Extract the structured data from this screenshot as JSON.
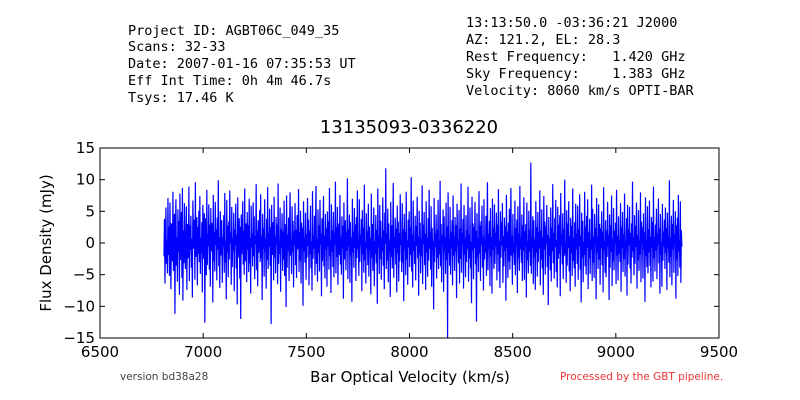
{
  "header": {
    "left": [
      "Project ID: AGBT06C_049_35",
      "Scans: 32-33",
      "Date: 2007-01-16 07:35:53 UT",
      "Eff Int Time: 0h 4m 46.7s",
      "Tsys: 17.46 K"
    ],
    "right": [
      "13:13:50.0 -03:36:21 J2000",
      "AZ: 121.2, EL: 28.3",
      "Rest Frequency:   1.420 GHz",
      "Sky Frequency:    1.383 GHz",
      "Velocity: 8060 km/s OPTI-BAR"
    ]
  },
  "footer": {
    "version": "version bd38a28",
    "processed": "Processed by the GBT pipeline."
  },
  "colors": {
    "series": "#0000ff",
    "processed_text": "#ee3333",
    "version_text": "#444444"
  },
  "chart_data": {
    "type": "line",
    "title": "13135093-0336220",
    "xlabel": "Bar Optical Velocity (km/s)",
    "ylabel": "Flux Density (mJy)",
    "xlim": [
      6500,
      9500
    ],
    "ylim": [
      -15,
      15
    ],
    "xticks": [
      6500,
      7000,
      7500,
      8000,
      8500,
      9000,
      9500
    ],
    "yticks": [
      -15,
      -10,
      -5,
      0,
      5,
      10,
      15
    ],
    "ytick_labels": [
      "−15",
      "−10",
      "−5",
      "0",
      "5",
      "10",
      "15"
    ],
    "grid": false,
    "series": [
      {
        "x_start": 6810,
        "x_end": 9320,
        "y": [
          -2.1,
          3.8,
          -6.4,
          1.2,
          5.6,
          -3.3,
          0.4,
          -4.8,
          7.1,
          -1.9,
          2.6,
          -5.2,
          6.4,
          -0.7,
          -7.3,
          3.1,
          1.8,
          -2.9,
          8.1,
          -4.4,
          -0.2,
          4.6,
          -11.2,
          2.3,
          6.9,
          -3.6,
          0.9,
          -6.1,
          5.3,
          -1.4,
          3.5,
          -8.2,
          7.8,
          -2.7,
          0.6,
          4.9,
          -5.5,
          8.7,
          -9.1,
          2.0,
          -3.2,
          6.3,
          -0.8,
          -4.1,
          1.5,
          5.8,
          -7.4,
          3.0,
          0.3,
          -2.4,
          8.9,
          -6.0,
          2.8,
          -1.1,
          4.3,
          -3.9,
          0.7,
          -8.6,
          6.7,
          1.9,
          -0.9,
          3.7,
          -5.8,
          9.6,
          -2.2,
          0.1,
          4.1,
          -6.7,
          2.5,
          -1.7,
          5.1,
          -3.0,
          7.4,
          -4.9,
          0.8,
          -1.6,
          3.3,
          -7.8,
          6.0,
          1.1,
          -2.5,
          4.7,
          -12.6,
          3.9,
          0.2,
          -5.1,
          8.4,
          -3.5,
          1.4,
          -0.5,
          6.1,
          -4.2,
          2.9,
          -6.9,
          5.5,
          -1.3,
          0.5,
          3.2,
          -9.4,
          7.6,
          -2.8,
          1.7,
          -4.5,
          6.5,
          -0.3,
          2.2,
          -5.9,
          4.0,
          -1.0,
          9.9,
          -3.7,
          0.9,
          -7.1,
          5.0,
          2.4,
          -2.0,
          3.6,
          -6.3,
          1.0,
          -0.6,
          4.4,
          -4.7,
          7.9,
          -3.1,
          0.4,
          -8.9,
          6.8,
          -1.5,
          2.7,
          -5.4,
          3.4,
          -2.6,
          8.3,
          -0.1,
          1.6,
          -6.6,
          5.7,
          -3.8,
          0.7,
          -1.2,
          4.8,
          -7.6,
          2.1,
          -0.4,
          6.2,
          -4.0,
          1.3,
          -9.7,
          7.2,
          -2.3,
          0.6,
          3.9,
          -5.6,
          2.6,
          -12.0,
          4.5,
          -1.8,
          0.3,
          6.6,
          -3.4,
          1.9,
          -5.0,
          8.6,
          -2.9,
          0.0,
          3.1,
          -6.2,
          4.9,
          -1.1,
          2.8,
          -4.6,
          7.0,
          -3.2,
          0.8,
          -8.0,
          5.9,
          -0.7,
          1.5,
          -3.7,
          6.4,
          -2.1,
          4.2,
          -5.7,
          1.1,
          -0.2,
          9.3,
          -4.3,
          2.0,
          -6.8,
          3.6,
          -1.6,
          0.5,
          5.2,
          -3.0,
          7.7,
          -2.4,
          1.2,
          -9.0,
          4.6,
          -0.9,
          2.3,
          -5.3,
          6.9,
          -1.4,
          0.7,
          -7.2,
          3.8,
          -2.7,
          8.8,
          -4.1,
          1.6,
          -0.6,
          5.4,
          -3.6,
          2.5,
          -12.8,
          6.0,
          -1.9,
          0.9,
          3.3,
          -5.9,
          7.3,
          -2.2,
          1.0,
          -4.8,
          4.1,
          -0.3,
          2.9,
          -6.5,
          9.4,
          -3.3,
          0.4,
          -1.7,
          5.6,
          -7.7,
          2.2,
          -0.8,
          4.7,
          -4.4,
          1.8,
          -2.6,
          6.7,
          -5.2,
          3.0,
          -0.1,
          -10.1,
          7.5,
          -3.9,
          1.3,
          -1.2,
          4.0,
          -6.0,
          2.7,
          8.0,
          -2.0,
          0.6,
          -4.9,
          5.8,
          -1.5,
          3.5,
          -7.0,
          1.9,
          -0.4,
          6.3,
          -3.5,
          2.1,
          -5.5,
          4.4,
          -1.0,
          0.2,
          8.5,
          -4.6,
          1.7,
          -2.8,
          5.1,
          -6.4,
          3.2,
          -0.7,
          2.4,
          -9.9,
          6.6,
          -1.3,
          0.8,
          -3.1,
          4.8,
          -5.8,
          1.4,
          -2.3,
          7.1,
          -0.5,
          3.7,
          -6.7,
          2.0,
          -1.8,
          5.9,
          -4.0,
          0.3,
          -7.5,
          8.2,
          -2.5,
          1.1,
          -0.9,
          4.3,
          -5.1,
          2.6,
          9.0,
          -3.3,
          0.7,
          -6.1,
          5.3,
          -1.6,
          2.8,
          -4.5,
          6.8,
          -0.2,
          1.5,
          -8.4,
          3.9,
          -2.9,
          0.9,
          7.4,
          -3.7,
          1.2,
          -5.6,
          4.6,
          -1.1,
          2.3,
          -6.9,
          5.0,
          -0.6,
          3.4,
          -4.2,
          8.7,
          -2.1,
          0.5,
          -7.9,
          6.1,
          -1.4,
          2.0,
          -3.8,
          4.9,
          -5.4,
          1.6,
          -0.3,
          9.7,
          -4.8,
          2.5,
          -2.2,
          5.7,
          -6.6,
          0.8,
          3.1,
          -1.9,
          7.6,
          -3.4,
          1.0,
          -5.0,
          4.2,
          -0.8,
          2.7,
          -8.8,
          6.4,
          -2.6,
          0.4,
          3.6,
          -4.3,
          1.7,
          -1.2,
          10.2,
          -5.7,
          2.2,
          -0.5,
          4.5,
          -6.3,
          3.3,
          -2.0,
          0.9,
          -9.3,
          7.0,
          -1.5,
          1.8,
          -3.9,
          5.5,
          -0.7,
          2.9,
          -6.0,
          4.1,
          -2.4,
          8.3,
          -1.0,
          0.6,
          -5.2,
          6.9,
          -3.0,
          1.3,
          -0.4,
          3.8,
          -7.6,
          5.2,
          -1.8,
          2.4,
          -4.7,
          9.2,
          -2.7,
          0.2,
          -6.4,
          4.7,
          -0.9,
          1.9,
          -3.5,
          6.2,
          -5.3,
          2.6,
          -1.1,
          0.7,
          -8.1,
          7.8,
          -2.3,
          3.0,
          -4.4,
          1.4,
          5.6,
          -6.8,
          0.3,
          -1.7,
          4.4,
          -3.2,
          2.1,
          -9.6,
          8.6,
          -0.6,
          1.1,
          -4.9,
          6.0,
          -2.5,
          3.5,
          -5.8,
          0.8,
          -1.3,
          7.2,
          -3.6,
          2.0,
          -7.3,
          4.8,
          -0.1,
          11.8,
          -4.1,
          1.5,
          -2.8,
          5.4,
          -6.2,
          3.1,
          -1.4,
          0.5,
          -8.5,
          6.5,
          -2.2,
          2.8,
          -4.0,
          1.2,
          9.5,
          -5.5,
          0.9,
          -0.8,
          4.0,
          -3.4,
          2.3,
          -7.8,
          5.9,
          -1.6,
          3.4,
          -6.1,
          1.6,
          -2.9,
          7.7,
          -0.3,
          0.6,
          -4.6,
          6.3,
          -3.1,
          2.2,
          -9.2,
          4.6,
          -1.0,
          1.7,
          -5.1,
          8.1,
          -2.6,
          0.4,
          -6.6,
          3.7,
          -0.7,
          5.0,
          -3.8,
          2.5,
          -1.9,
          10.4,
          -4.5,
          1.3,
          -7.0,
          6.7,
          -1.2,
          0.1,
          -3.3,
          4.3,
          -5.9,
          2.7,
          -0.5,
          7.3,
          -2.4,
          1.0,
          -8.3,
          5.1,
          -1.7,
          3.2,
          -4.8,
          0.7,
          -2.1,
          9.1,
          -6.5,
          2.9,
          -0.2,
          4.9,
          -3.5,
          1.4,
          -7.4,
          6.6,
          -1.5,
          0.8,
          -5.3,
          3.9,
          -2.8,
          8.4,
          -0.9,
          1.8,
          -4.2,
          5.8,
          -6.9,
          2.4,
          -1.1,
          0.3,
          -10.5,
          7.1,
          -3.0,
          1.5,
          -0.6,
          4.5,
          -5.6,
          2.1,
          -2.3,
          6.8,
          -4.1,
          0.5,
          -1.8,
          9.8,
          -3.7,
          3.0,
          -6.2,
          1.2,
          -0.4,
          5.3,
          -7.7,
          4.2,
          -1.3,
          0.9,
          -4.9,
          6.4,
          -2.7,
          2.6,
          -15.0,
          8.0,
          -1.6,
          0.6,
          -3.6,
          5.7,
          -5.0,
          1.7,
          -0.8,
          3.6,
          -6.7,
          7.5,
          -2.0,
          1.1,
          -4.4,
          4.1,
          -1.4,
          2.8,
          -8.7,
          6.2,
          -0.5,
          0.4,
          -3.2,
          5.2,
          -6.4,
          2.3,
          -2.5,
          9.4,
          -4.7,
          1.6,
          -0.1,
          3.8,
          -7.2,
          6.0,
          -1.9,
          0.8,
          -5.4,
          4.4,
          -3.0,
          2.0,
          -1.0,
          8.9,
          -6.1,
          1.3,
          -2.4,
          5.6,
          -4.0,
          0.2,
          -9.5,
          7.3,
          -1.2,
          3.1,
          -5.7,
          2.5,
          -0.7,
          6.5,
          -3.4,
          1.9,
          -12.4,
          4.7,
          -2.2,
          0.7,
          -4.6,
          8.2,
          -1.7,
          2.7,
          -6.0,
          3.4,
          -0.3,
          5.9,
          -3.9,
          1.0,
          -7.5,
          6.9,
          -2.6,
          0.5,
          -1.5,
          4.3,
          -5.2,
          2.2,
          9.6,
          -4.3,
          1.4,
          -0.9,
          3.5,
          -6.8,
          5.5,
          -2.1,
          0.9,
          -8.0,
          7.0,
          -1.1,
          2.4,
          -4.1,
          6.1,
          -3.3,
          1.6,
          -0.6,
          4.8,
          -5.9,
          2.9,
          -1.8,
          8.5,
          -4.5,
          0.3,
          -7.1,
          5.0,
          -2.3,
          3.3,
          -0.4,
          6.3,
          -6.3,
          1.1,
          -3.7,
          4.0,
          -1.3,
          2.6,
          -9.1,
          7.6,
          -0.8,
          1.8,
          -5.5,
          3.2,
          -2.9,
          5.4,
          -4.2,
          0.6,
          8.7,
          -2.0,
          1.2,
          -6.6,
          4.6,
          -1.6,
          0.1,
          -3.5,
          6.7,
          -5.1,
          2.3,
          -0.5,
          3.7,
          -7.9,
          5.8,
          -2.4,
          1.5,
          -4.4,
          9.0,
          -1.0,
          0.8,
          -3.1,
          4.5,
          -6.0,
          2.8,
          -1.2,
          7.2,
          -5.8,
          1.9,
          -0.3,
          3.0,
          -8.6,
          6.4,
          -2.7,
          0.4,
          -4.8,
          5.1,
          -1.4,
          2.1,
          -3.6,
          12.7,
          -4.9,
          1.0,
          -0.7,
          4.2,
          -6.5,
          3.6,
          -2.2,
          0.6,
          -7.4,
          6.6,
          -1.5,
          2.5,
          -5.3,
          4.9,
          -3.0,
          1.7,
          -0.9,
          8.3,
          -6.7,
          2.0,
          -2.6,
          5.3,
          -4.0,
          0.9,
          -8.2,
          7.4,
          -1.1,
          3.4,
          -5.0,
          2.6,
          -0.2,
          6.0,
          -3.8,
          1.3,
          -9.8,
          4.1,
          -2.0,
          0.7,
          -4.3,
          5.6,
          -6.1,
          2.4,
          -1.3,
          9.3,
          -3.2,
          1.6,
          -5.6,
          3.9,
          -0.6,
          6.8,
          -4.6,
          0.5,
          -7.0,
          5.7,
          -2.5,
          2.9,
          -1.7,
          4.4,
          -8.4,
          7.9,
          -0.4,
          1.4,
          -3.4,
          4.7,
          -5.7,
          2.2,
          -2.1,
          10.0,
          -1.8,
          0.3,
          -6.3,
          5.2,
          -3.6,
          3.1,
          -0.8,
          6.6,
          -4.5,
          1.1,
          -7.6,
          4.0,
          -1.6,
          2.7,
          -5.2,
          8.6,
          -2.8,
          0.8,
          -4.0,
          3.3,
          -6.9,
          6.2,
          -1.0,
          1.5,
          -3.3,
          5.9,
          -5.8,
          2.1,
          -0.5,
          7.7,
          -4.2,
          1.2,
          -9.4,
          4.8,
          -2.3,
          3.5,
          -6.2,
          0.2,
          -1.9,
          8.1,
          -3.7,
          2.6,
          -5.0,
          4.3,
          -0.7,
          6.9,
          -7.3,
          1.7,
          -2.4,
          3.8,
          -4.9,
          0.6,
          -1.1,
          9.2,
          -6.0,
          5.4,
          -3.1,
          1.0,
          -5.5,
          4.6,
          -0.3,
          2.4,
          -8.9,
          7.1,
          -1.5,
          0.9,
          -4.1,
          6.1,
          -2.6,
          3.0,
          -6.6,
          2.3,
          -0.9,
          5.0,
          -3.5,
          1.8,
          -7.8,
          8.8,
          -1.2,
          0.4,
          -4.7,
          3.6,
          -5.4,
          2.0,
          -2.2,
          6.5,
          -0.6,
          1.3,
          -9.0,
          4.5,
          -3.9,
          2.8,
          -1.4,
          7.5,
          -6.8,
          0.7,
          -2.9,
          5.5,
          -4.3,
          1.9,
          -0.1,
          3.2,
          -6.5,
          8.4,
          -2.0,
          1.1,
          -5.9,
          4.2,
          -1.7,
          0.5,
          -3.0,
          6.3,
          -7.7,
          2.6,
          -0.8,
          4.9,
          -4.6,
          1.4,
          -2.5,
          7.8,
          -5.3,
          0.3,
          -1.0,
          3.9,
          -8.3,
          6.0,
          -3.4,
          2.1,
          -0.4,
          5.7,
          -4.0,
          1.6,
          -6.4,
          3.1,
          -2.3,
          9.7,
          -1.3,
          0.8,
          -5.1,
          4.4,
          -3.3,
          2.7,
          -0.6,
          6.4,
          -7.2,
          1.2,
          -2.7,
          5.2,
          -4.4,
          0.4,
          -1.8,
          8.0,
          -6.2,
          3.4,
          -0.2,
          2.5,
          -5.6,
          4.7,
          -1.1,
          1.7,
          -9.3,
          7.2,
          -2.1,
          0.6,
          -3.8,
          5.8,
          -4.8,
          2.2,
          -1.5,
          6.7,
          -3.6,
          1.0,
          -7.0,
          4.1,
          -0.7,
          3.3,
          -6.1,
          8.9,
          -2.4,
          0.9,
          -4.5,
          2.9,
          -1.2,
          5.4,
          -5.7,
          1.5,
          -0.3,
          7.0,
          -3.2,
          2.3,
          -8.0,
          4.6,
          -1.9,
          0.2,
          -6.9,
          6.2,
          -2.8,
          1.8,
          -0.5,
          3.7,
          -4.1,
          5.6,
          -1.6,
          2.4,
          -7.4,
          4.8,
          -0.9,
          1.0,
          -3.1,
          9.9,
          -5.4,
          0.7,
          -2.2,
          4.3,
          -6.7,
          3.0,
          -1.0,
          6.8,
          -4.7,
          1.3,
          -0.4,
          5.0,
          -8.8,
          2.8,
          -2.6,
          4.0,
          -5.2,
          7.6,
          -1.4,
          0.5,
          -3.9,
          6.6,
          -6.3,
          2.0,
          -0.6
        ]
      }
    ]
  }
}
